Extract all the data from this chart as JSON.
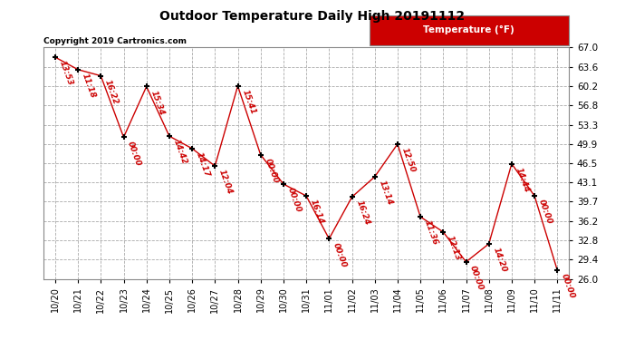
{
  "title": "Outdoor Temperature Daily High 20191112",
  "copyright_text": "Copyright 2019 Cartronics.com",
  "legend_label": "Temperature (°F)",
  "dates": [
    "10/20",
    "10/21",
    "10/22",
    "10/23",
    "10/24",
    "10/25",
    "10/26",
    "10/27",
    "10/28",
    "10/29",
    "10/30",
    "10/31",
    "11/01",
    "11/02",
    "11/03",
    "11/04",
    "11/05",
    "11/06",
    "11/07",
    "11/08",
    "11/09",
    "11/10",
    "11/11"
  ],
  "values": [
    65.3,
    63.1,
    62.0,
    51.1,
    60.1,
    51.3,
    49.1,
    46.0,
    60.2,
    48.0,
    42.8,
    40.7,
    33.1,
    40.5,
    44.1,
    49.9,
    37.0,
    34.3,
    29.0,
    32.2,
    46.4,
    40.7,
    27.5
  ],
  "labels": [
    "13:53",
    "11:18",
    "16:22",
    "00:00",
    "15:34",
    "14:42",
    "14:17",
    "12:04",
    "15:41",
    "00:00",
    "00:00",
    "16:14",
    "00:00",
    "16:24",
    "13:14",
    "12:50",
    "11:36",
    "12:13",
    "00:00",
    "14:20",
    "14:44",
    "00:00",
    "00:00"
  ],
  "line_color": "#cc0000",
  "marker_color": "#000000",
  "label_color": "#cc0000",
  "bg_color": "#ffffff",
  "grid_color": "#aaaaaa",
  "title_color": "#000000",
  "legend_bg": "#cc0000",
  "legend_text_color": "#ffffff",
  "ylim": [
    26.0,
    67.0
  ],
  "yticks": [
    26.0,
    29.4,
    32.8,
    36.2,
    39.7,
    43.1,
    46.5,
    49.9,
    53.3,
    56.8,
    60.2,
    63.6,
    67.0
  ]
}
